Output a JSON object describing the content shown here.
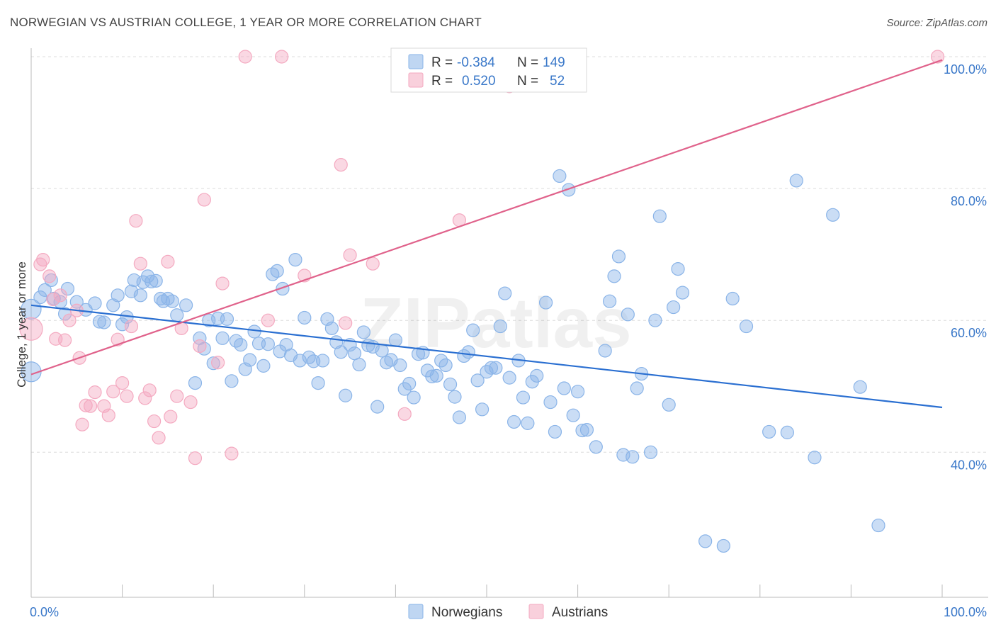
{
  "chart_data": {
    "type": "scatter",
    "title": "NORWEGIAN VS AUSTRIAN COLLEGE, 1 YEAR OR MORE CORRELATION CHART",
    "source": "Source: ZipAtlas.com",
    "xlabel": "",
    "ylabel": "College, 1 year or more",
    "xlim": [
      0,
      100
    ],
    "ylim": [
      18,
      100
    ],
    "x_tick_labels": [
      "0.0%",
      "100.0%"
    ],
    "y_ticks": [
      40,
      60,
      80,
      100
    ],
    "y_tick_labels": [
      "40.0%",
      "60.0%",
      "80.0%",
      "100.0%"
    ],
    "watermark": "ZIPatlas",
    "legend": {
      "rows": [
        {
          "r_label": "R =",
          "r_value": "-0.384",
          "n_label": "N =",
          "n_value": "149"
        },
        {
          "r_label": "R =",
          "r_value": "0.520",
          "n_label": "N =",
          "n_value": "52"
        }
      ]
    },
    "series": [
      {
        "name": "Norwegians",
        "color": "#8ab4e8",
        "line_color": "#2a6fd1",
        "trend": {
          "x": [
            0,
            100
          ],
          "y": [
            62.3,
            46.8
          ]
        },
        "points": [
          [
            0,
            52.2,
            14
          ],
          [
            0,
            61.7,
            14
          ],
          [
            1,
            63.5,
            9
          ],
          [
            1.5,
            64.6,
            9
          ],
          [
            2.2,
            66.1,
            9
          ],
          [
            2.5,
            63.3,
            9
          ],
          [
            3.2,
            62.8,
            9
          ],
          [
            3.7,
            61,
            9
          ],
          [
            4,
            64.8,
            9
          ],
          [
            5,
            62.8,
            9
          ],
          [
            6,
            61.6,
            9
          ],
          [
            7,
            62.6,
            9
          ],
          [
            7.5,
            59.8,
            9
          ],
          [
            8,
            59.7,
            9
          ],
          [
            9,
            62.3,
            9
          ],
          [
            9.5,
            63.8,
            9
          ],
          [
            10,
            59.4,
            9
          ],
          [
            10.5,
            60.5,
            9
          ],
          [
            11,
            64.4,
            9
          ],
          [
            11.3,
            66.1,
            9
          ],
          [
            12,
            63.8,
            9
          ],
          [
            12.3,
            65.8,
            9
          ],
          [
            12.8,
            66.7,
            9
          ],
          [
            13.2,
            65.9,
            9
          ],
          [
            13.7,
            66,
            9
          ],
          [
            14.2,
            63.3,
            9
          ],
          [
            14.5,
            62.9,
            9
          ],
          [
            15,
            63.3,
            9
          ],
          [
            15.5,
            62.9,
            9
          ],
          [
            16,
            60.8,
            9
          ],
          [
            17,
            62.3,
            9
          ],
          [
            18,
            50.5,
            9
          ],
          [
            18.5,
            57.3,
            9
          ],
          [
            19,
            55.7,
            9
          ],
          [
            19.5,
            60,
            9
          ],
          [
            20,
            53.5,
            9
          ],
          [
            20.5,
            60.3,
            9
          ],
          [
            21,
            57.3,
            9
          ],
          [
            21.5,
            60.2,
            9
          ],
          [
            22,
            50.8,
            9
          ],
          [
            22.5,
            56.9,
            9
          ],
          [
            23,
            56.3,
            9
          ],
          [
            23.5,
            52.6,
            9
          ],
          [
            24,
            54,
            9
          ],
          [
            24.5,
            58.3,
            9
          ],
          [
            25,
            56.5,
            9
          ],
          [
            25.5,
            53.1,
            9
          ],
          [
            26,
            56.4,
            9
          ],
          [
            26.5,
            67,
            9
          ],
          [
            27,
            67.5,
            9
          ],
          [
            27.3,
            55.3,
            9
          ],
          [
            27.6,
            64.8,
            9
          ],
          [
            28,
            56.3,
            9
          ],
          [
            28.5,
            54.7,
            9
          ],
          [
            29,
            69.2,
            9
          ],
          [
            29.5,
            53.9,
            9
          ],
          [
            30,
            60.4,
            9
          ],
          [
            30.5,
            54.4,
            9
          ],
          [
            31,
            53.8,
            9
          ],
          [
            31.5,
            50.5,
            9
          ],
          [
            32,
            53.9,
            9
          ],
          [
            32.5,
            60.2,
            9
          ],
          [
            33,
            58.8,
            9
          ],
          [
            33.5,
            56.7,
            9
          ],
          [
            34,
            55.2,
            9
          ],
          [
            34.5,
            48.6,
            9
          ],
          [
            35,
            56.3,
            9
          ],
          [
            35.5,
            55,
            9
          ],
          [
            36,
            53.3,
            9
          ],
          [
            36.5,
            58.2,
            9
          ],
          [
            37,
            56.2,
            9
          ],
          [
            37.5,
            56,
            9
          ],
          [
            38,
            46.9,
            9
          ],
          [
            38.5,
            55.4,
            9
          ],
          [
            39,
            53.6,
            9
          ],
          [
            39.5,
            54,
            9
          ],
          [
            40,
            57,
            9
          ],
          [
            40.5,
            53.2,
            9
          ],
          [
            41,
            49.6,
            9
          ],
          [
            41.5,
            50.4,
            9
          ],
          [
            42,
            48.3,
            9
          ],
          [
            42.5,
            54.9,
            9
          ],
          [
            43,
            55.1,
            9
          ],
          [
            43.5,
            52.4,
            9
          ],
          [
            44,
            51.5,
            9
          ],
          [
            44.5,
            51.6,
            9
          ],
          [
            45,
            53.9,
            9
          ],
          [
            45.5,
            53.2,
            9
          ],
          [
            46,
            50.3,
            9
          ],
          [
            46.5,
            48.4,
            9
          ],
          [
            47,
            45.3,
            9
          ],
          [
            47.5,
            54.6,
            9
          ],
          [
            48,
            55.2,
            9
          ],
          [
            48.5,
            58.5,
            9
          ],
          [
            49,
            50.9,
            9
          ],
          [
            49.5,
            46.5,
            9
          ],
          [
            50,
            52.2,
            9
          ],
          [
            50.5,
            52.8,
            9
          ],
          [
            51,
            52.8,
            9
          ],
          [
            51.5,
            59.1,
            9
          ],
          [
            52,
            64.1,
            9
          ],
          [
            52.5,
            51.3,
            9
          ],
          [
            53,
            44.6,
            9
          ],
          [
            53.5,
            53.9,
            9
          ],
          [
            54,
            48.3,
            9
          ],
          [
            54.5,
            44.4,
            9
          ],
          [
            55,
            50.7,
            9
          ],
          [
            55.5,
            51.6,
            9
          ],
          [
            56.5,
            62.7,
            9
          ],
          [
            57,
            47.6,
            9
          ],
          [
            57.5,
            43.1,
            9
          ],
          [
            58,
            81.9,
            9
          ],
          [
            58.5,
            49.7,
            9
          ],
          [
            59,
            79.8,
            9
          ],
          [
            59.5,
            45.6,
            9
          ],
          [
            60,
            49.2,
            9
          ],
          [
            60.5,
            43.3,
            9
          ],
          [
            61,
            43.4,
            9
          ],
          [
            62,
            40.8,
            9
          ],
          [
            63,
            55.4,
            9
          ],
          [
            63.5,
            62.9,
            9
          ],
          [
            64,
            66.7,
            9
          ],
          [
            64.5,
            69.7,
            9
          ],
          [
            65,
            39.6,
            9
          ],
          [
            65.5,
            60.9,
            9
          ],
          [
            66,
            39.3,
            9
          ],
          [
            66.5,
            49.7,
            9
          ],
          [
            67,
            51.9,
            9
          ],
          [
            68,
            40,
            9
          ],
          [
            68.5,
            60,
            9
          ],
          [
            69,
            75.8,
            9
          ],
          [
            70,
            47.2,
            9
          ],
          [
            70.5,
            62,
            9
          ],
          [
            71,
            67.8,
            9
          ],
          [
            71.5,
            64.2,
            9
          ],
          [
            74,
            26.5,
            9
          ],
          [
            76,
            25.8,
            9
          ],
          [
            77,
            63.3,
            9
          ],
          [
            78.5,
            59.1,
            9
          ],
          [
            81,
            43.1,
            9
          ],
          [
            83,
            43,
            9
          ],
          [
            84,
            81.2,
            9
          ],
          [
            86,
            39.2,
            9
          ],
          [
            88,
            76,
            9
          ],
          [
            91,
            49.9,
            9
          ],
          [
            93,
            28.9,
            9
          ]
        ]
      },
      {
        "name": "Austrians",
        "color": "#f4a9c0",
        "line_color": "#e0628b",
        "trend": {
          "x": [
            0,
            100
          ],
          "y": [
            51.8,
            99.5
          ]
        },
        "points": [
          [
            0,
            58.7,
            16
          ],
          [
            1,
            68.5,
            9
          ],
          [
            1.3,
            69.2,
            9
          ],
          [
            2,
            66.7,
            9
          ],
          [
            2.4,
            63.2,
            9
          ],
          [
            2.7,
            57.2,
            9
          ],
          [
            3.2,
            63.8,
            9
          ],
          [
            3.7,
            57,
            9
          ],
          [
            4.2,
            60,
            9
          ],
          [
            5,
            61.5,
            9
          ],
          [
            5.3,
            54.3,
            9
          ],
          [
            5.6,
            44.2,
            9
          ],
          [
            6,
            47.1,
            9
          ],
          [
            6.5,
            47,
            9
          ],
          [
            7,
            49.1,
            9
          ],
          [
            8,
            47,
            9
          ],
          [
            8.5,
            45.6,
            9
          ],
          [
            9,
            49.2,
            9
          ],
          [
            9.5,
            57.1,
            9
          ],
          [
            10,
            50.5,
            9
          ],
          [
            10.5,
            48.5,
            9
          ],
          [
            11,
            59.1,
            9
          ],
          [
            11.5,
            75.1,
            9
          ],
          [
            12,
            68.6,
            9
          ],
          [
            12.5,
            48.2,
            9
          ],
          [
            13,
            49.4,
            9
          ],
          [
            13.5,
            44.7,
            9
          ],
          [
            14,
            42.2,
            9
          ],
          [
            15,
            68.9,
            9
          ],
          [
            15.3,
            45.4,
            9
          ],
          [
            16,
            48.5,
            9
          ],
          [
            16.5,
            58.8,
            9
          ],
          [
            17.5,
            47.6,
            9
          ],
          [
            18,
            39.1,
            9
          ],
          [
            18.5,
            56.1,
            9
          ],
          [
            19,
            78.3,
            9
          ],
          [
            20.5,
            53.6,
            9
          ],
          [
            21,
            65.6,
            9
          ],
          [
            22,
            39.8,
            9
          ],
          [
            23.5,
            100,
            9
          ],
          [
            26,
            60,
            9
          ],
          [
            27.5,
            100,
            9
          ],
          [
            30,
            66.8,
            9
          ],
          [
            34,
            83.6,
            9
          ],
          [
            34.5,
            59.6,
            9
          ],
          [
            35,
            69.9,
            9
          ],
          [
            37.5,
            68.6,
            9
          ],
          [
            41,
            45.8,
            9
          ],
          [
            47,
            75.2,
            9
          ],
          [
            52.5,
            95.5,
            9
          ],
          [
            99.5,
            100,
            9
          ]
        ]
      }
    ]
  }
}
